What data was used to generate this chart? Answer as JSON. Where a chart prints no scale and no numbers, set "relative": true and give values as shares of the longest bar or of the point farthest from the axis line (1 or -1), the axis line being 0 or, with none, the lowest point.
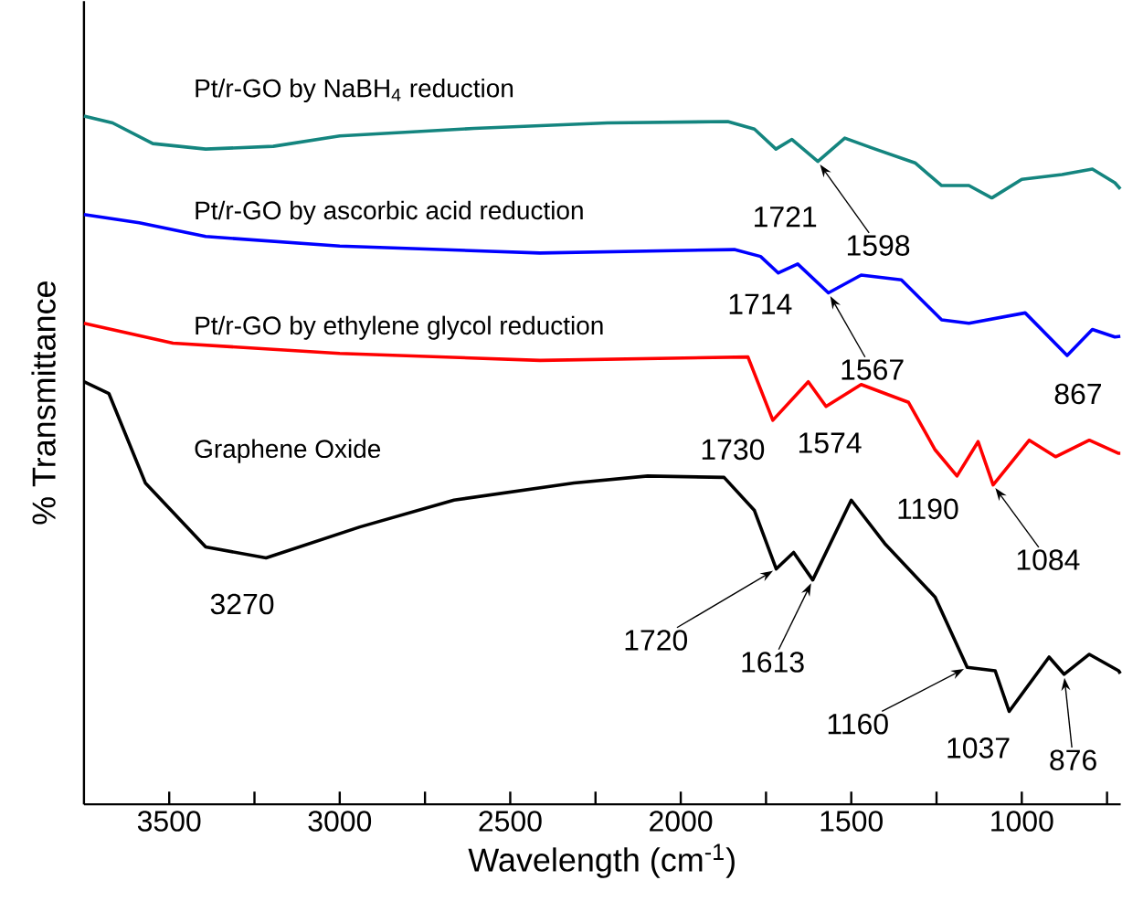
{
  "chart_data": {
    "type": "line",
    "xlabel": "Wavelength (cm$^{-1}$)",
    "ylabel": "% Transmittance",
    "relative": true,
    "xlim": [
      3750,
      710
    ],
    "xticks": [
      3500,
      {
        "value": 3250,
        "label": null
      },
      3000,
      {
        "value": 2750,
        "label": null
      },
      2500,
      {
        "value": 2250,
        "label": null
      },
      2000,
      {
        "value": 1750,
        "label": null
      },
      1500,
      {
        "value": 1250,
        "label": null
      },
      1000,
      {
        "value": 750,
        "label": null
      }
    ],
    "series": [
      {
        "name": "Pt/r-GO by NaBH$_{4}$ reduction",
        "color": "#14857f",
        "x": [
          3750,
          3666,
          3548,
          3393,
          3195,
          3000,
          2606,
          2215,
          1862,
          1784,
          1721,
          1674,
          1598,
          1519,
          1430,
          1313,
          1235,
          1155,
          1088,
          1000,
          882,
          793,
          727,
          711
        ],
        "values": [
          1.0,
          0.99,
          0.96,
          0.952,
          0.956,
          0.971,
          0.982,
          0.99,
          0.992,
          0.981,
          0.952,
          0.966,
          0.934,
          0.968,
          0.952,
          0.932,
          0.899,
          0.899,
          0.881,
          0.908,
          0.915,
          0.923,
          0.903,
          0.894
        ]
      },
      {
        "name": "Pt/r-GO by ascorbic acid reduction",
        "color": "#0000ff",
        "x": [
          3750,
          3588,
          3393,
          3000,
          2413,
          1843,
          1766,
          1714,
          1657,
          1567,
          1471,
          1353,
          1235,
          1155,
          990,
          867,
          793,
          727,
          711
        ],
        "values": [
          0.857,
          0.845,
          0.825,
          0.811,
          0.801,
          0.806,
          0.796,
          0.772,
          0.785,
          0.743,
          0.769,
          0.762,
          0.704,
          0.699,
          0.714,
          0.652,
          0.69,
          0.679,
          0.68
        ]
      },
      {
        "name": "Pt/r-GO by ethylene glycol reduction",
        "color": "#ff0000",
        "x": [
          3750,
          3489,
          3000,
          2413,
          1803,
          1730,
          1626,
          1574,
          1471,
          1332,
          1254,
          1190,
          1128,
          1084,
          978,
          901,
          802,
          716,
          711
        ],
        "values": [
          0.699,
          0.67,
          0.655,
          0.645,
          0.65,
          0.558,
          0.614,
          0.578,
          0.61,
          0.584,
          0.515,
          0.477,
          0.527,
          0.464,
          0.529,
          0.505,
          0.529,
          0.51,
          0.51
        ]
      },
      {
        "name": "Graphene Oxide",
        "color": "#000000",
        "x": [
          3750,
          3677,
          3570,
          3393,
          3216,
          2941,
          2665,
          2313,
          2097,
          1873,
          1784,
          1720,
          1669,
          1613,
          1500,
          1402,
          1254,
          1160,
          1078,
          1037,
          920,
          876,
          802,
          716,
          711
        ],
        "values": [
          0.614,
          0.597,
          0.467,
          0.374,
          0.358,
          0.403,
          0.442,
          0.467,
          0.477,
          0.475,
          0.427,
          0.342,
          0.366,
          0.326,
          0.442,
          0.379,
          0.301,
          0.199,
          0.194,
          0.135,
          0.214,
          0.189,
          0.218,
          0.194,
          0.19
        ]
      }
    ],
    "annotations": [
      {
        "text": "1721",
        "x": 1721,
        "y": 0.952
      },
      {
        "text": "1598",
        "x": 1598,
        "y": 0.934
      },
      {
        "text": "1714",
        "x": 1714,
        "y": 0.772
      },
      {
        "text": "1567",
        "x": 1567,
        "y": 0.743
      },
      {
        "text": "867",
        "x": 867,
        "y": 0.652
      },
      {
        "text": "1730",
        "x": 1730,
        "y": 0.558
      },
      {
        "text": "1574",
        "x": 1574,
        "y": 0.578
      },
      {
        "text": "1190",
        "x": 1190,
        "y": 0.477
      },
      {
        "text": "1084",
        "x": 1084,
        "y": 0.464
      },
      {
        "text": "3270",
        "x": 3270,
        "y": 0.36
      },
      {
        "text": "1720",
        "x": 1720,
        "y": 0.342
      },
      {
        "text": "1613",
        "x": 1613,
        "y": 0.326
      },
      {
        "text": "1160",
        "x": 1160,
        "y": 0.199
      },
      {
        "text": "1037",
        "x": 1037,
        "y": 0.135
      },
      {
        "text": "876",
        "x": 876,
        "y": 0.189
      }
    ]
  }
}
